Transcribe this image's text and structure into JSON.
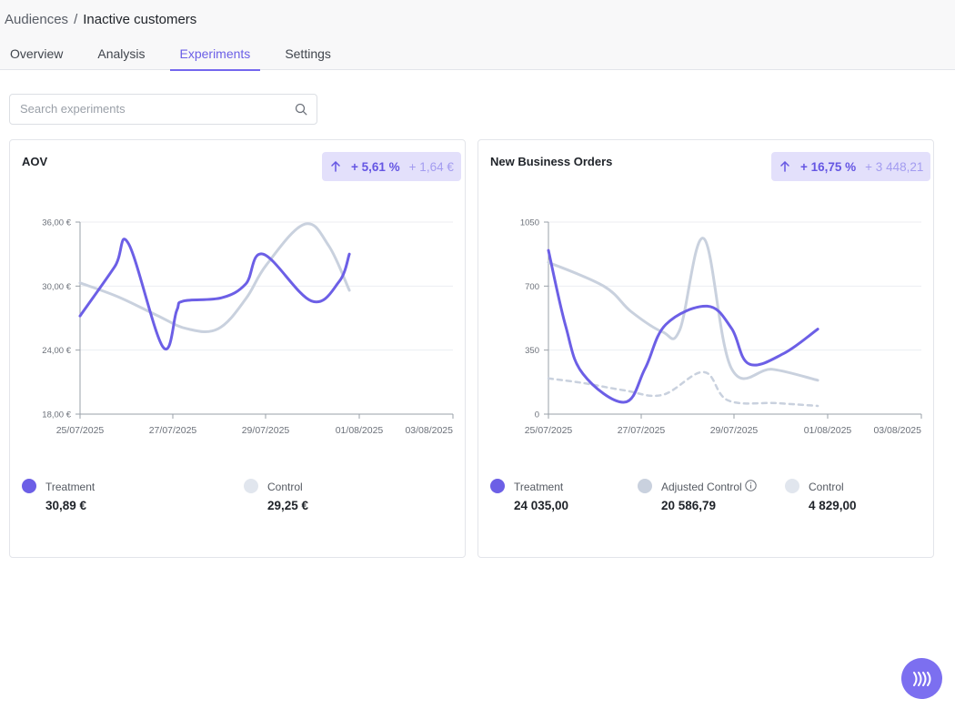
{
  "breadcrumb": {
    "parent": "Audiences",
    "separator": "/",
    "current": "Inactive customers"
  },
  "tabs": [
    {
      "label": "Overview",
      "active": false
    },
    {
      "label": "Analysis",
      "active": false
    },
    {
      "label": "Experiments",
      "active": true
    },
    {
      "label": "Settings",
      "active": false
    }
  ],
  "search": {
    "placeholder": "Search experiments",
    "value": ""
  },
  "colors": {
    "treatment": "#6c5fe6",
    "control": "#c9d1de",
    "adjusted_control": "#c9d1de",
    "accent": "#6b5fe6",
    "badge_bg": "#e3e0fb"
  },
  "cards": [
    {
      "title": "AOV",
      "badge": {
        "arrow_icon": "arrow-up-icon",
        "percent": "+ 5,61 %",
        "absolute": "+ 1,64 €"
      },
      "legend": [
        {
          "label": "Treatment",
          "value": "30,89 €",
          "color": "#6c5fe6"
        },
        {
          "label": "Control",
          "value": "29,25 €",
          "color": "#e1e6ee"
        }
      ]
    },
    {
      "title": "New Business Orders",
      "badge": {
        "arrow_icon": "arrow-up-icon",
        "percent": "+ 16,75 %",
        "absolute": "+ 3 448,21"
      },
      "legend": [
        {
          "label": "Treatment",
          "value": "24 035,00",
          "color": "#6c5fe6"
        },
        {
          "label": "Adjusted Control",
          "value": "20 586,79",
          "color": "#c9d1de",
          "info_icon": "info-icon"
        },
        {
          "label": "Control",
          "value": "4 829,00",
          "color": "#e1e6ee"
        }
      ]
    }
  ],
  "chart_data": [
    {
      "type": "line",
      "title": "AOV",
      "x_ticks": [
        "25/07/2025",
        "27/07/2025",
        "29/07/2025",
        "01/08/2025",
        "03/08/2025"
      ],
      "x_range": [
        "2025-07-25",
        "2025-08-03"
      ],
      "y_ticks": [
        "18,00 €",
        "24,00 €",
        "30,00 €",
        "36,00 €"
      ],
      "ylim": [
        18,
        36
      ],
      "grid": true,
      "series": [
        {
          "name": "Treatment",
          "color": "#6c5fe6",
          "style": "solid",
          "points": [
            [
              "2025-07-25",
              27.2
            ],
            [
              "2025-07-25T20:00",
              31.8
            ],
            [
              "2025-07-26T04:00",
              34.0
            ],
            [
              "2025-07-27",
              24.3
            ],
            [
              "2025-07-27T08:00",
              27.7
            ],
            [
              "2025-07-27T12:00",
              28.6
            ],
            [
              "2025-07-28T10:00",
              28.9
            ],
            [
              "2025-07-29",
              30.2
            ],
            [
              "2025-07-29T10:00",
              33.0
            ],
            [
              "2025-07-30T14:00",
              28.6
            ],
            [
              "2025-07-31T06:00",
              30.4
            ],
            [
              "2025-07-31T12:00",
              33.0
            ]
          ]
        },
        {
          "name": "Control",
          "color": "#c9d1de",
          "style": "solid",
          "points": [
            [
              "2025-07-25",
              30.3
            ],
            [
              "2025-07-25T22:00",
              29.0
            ],
            [
              "2025-07-26T20:00",
              27.3
            ],
            [
              "2025-07-27T14:00",
              26.0
            ],
            [
              "2025-07-28T08:00",
              26.0
            ],
            [
              "2025-07-29",
              28.8
            ],
            [
              "2025-07-29T12:00",
              32.0
            ],
            [
              "2025-07-30T10:00",
              35.8
            ],
            [
              "2025-07-31T00:00",
              33.8
            ],
            [
              "2025-07-31T12:00",
              29.6
            ]
          ]
        }
      ]
    },
    {
      "type": "line",
      "title": "New Business Orders",
      "x_ticks": [
        "25/07/2025",
        "27/07/2025",
        "29/07/2025",
        "01/08/2025",
        "03/08/2025"
      ],
      "x_range": [
        "2025-07-25",
        "2025-08-03"
      ],
      "y_ticks": [
        "0",
        "350",
        "700",
        "1050"
      ],
      "ylim": [
        0,
        1050
      ],
      "grid": true,
      "series": [
        {
          "name": "Treatment",
          "color": "#6c5fe6",
          "style": "solid",
          "points": [
            [
              "2025-07-25",
              895
            ],
            [
              "2025-07-25T10:00",
              480
            ],
            [
              "2025-07-25T20:00",
              220
            ],
            [
              "2025-07-26T20:00",
              65
            ],
            [
              "2025-07-27T08:00",
              250
            ],
            [
              "2025-07-27T20:00",
              490
            ],
            [
              "2025-07-28T20:00",
              590
            ],
            [
              "2025-07-29T10:00",
              470
            ],
            [
              "2025-07-29T20:00",
              275
            ],
            [
              "2025-07-30T16:00",
              330
            ],
            [
              "2025-07-31T12:00",
              465
            ]
          ]
        },
        {
          "name": "Adjusted Control",
          "color": "#c9d1de",
          "style": "dashed",
          "points": [
            [
              "2025-07-25",
              195
            ],
            [
              "2025-07-25T20:00",
              170
            ],
            [
              "2025-07-26T20:00",
              130
            ],
            [
              "2025-07-27T18:00",
              105
            ],
            [
              "2025-07-28T18:00",
              230
            ],
            [
              "2025-07-29T08:00",
              75
            ],
            [
              "2025-07-30T12:00",
              60
            ],
            [
              "2025-07-31T12:00",
              45
            ]
          ]
        },
        {
          "name": "Control",
          "color": "#c9d1de",
          "style": "solid",
          "points": [
            [
              "2025-07-25",
              830
            ],
            [
              "2025-07-26T08:00",
              700
            ],
            [
              "2025-07-27T00:00",
              560
            ],
            [
              "2025-07-27T18:00",
              450
            ],
            [
              "2025-07-28T04:00",
              460
            ],
            [
              "2025-07-28T18:00",
              960
            ],
            [
              "2025-07-29T10:00",
              250
            ],
            [
              "2025-07-30T10:00",
              245
            ],
            [
              "2025-07-31T12:00",
              185
            ]
          ]
        }
      ]
    }
  ]
}
